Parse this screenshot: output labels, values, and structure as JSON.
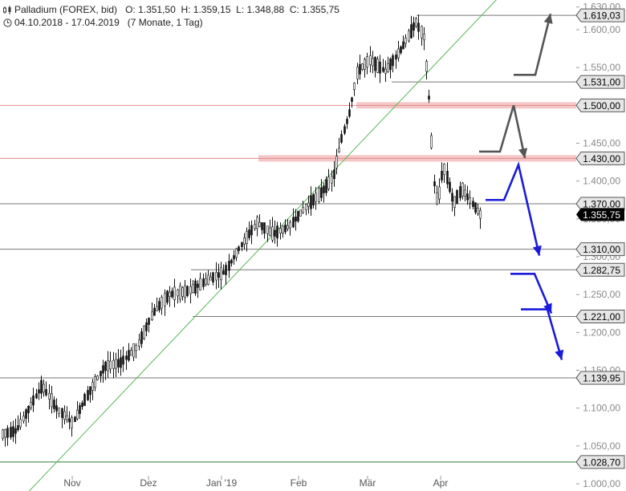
{
  "header": {
    "instrument": "Palladium (FOREX, bid)",
    "ohlc": "O: 1.351,50  H: 1.359,15  L: 1.348,88  C: 1.355,75",
    "range": "04.10.2018 - 17.04.2019",
    "period": "(7 Monate, 1 Tag)"
  },
  "chart_data": {
    "type": "candlestick",
    "ylim": [
      1000,
      1635
    ],
    "y_ticks": [
      "1.000,00",
      "1.050,00",
      "1.100,00",
      "1.150,00",
      "1.200,00",
      "1.250,00",
      "1.300,00",
      "1.350,00",
      "1.400,00",
      "1.450,00",
      "1.500,00",
      "1.550,00",
      "1.600,00",
      "1.630,00"
    ],
    "x_ticks": [
      "Nov",
      "Dez",
      "Jan '19",
      "Feb",
      "Mär",
      "Apr"
    ],
    "last_price": "1.355,75",
    "levels": [
      {
        "value": 1619.03,
        "label": "1.619,03",
        "zone": false
      },
      {
        "value": 1531.0,
        "label": "1.531,00",
        "zone": false
      },
      {
        "value": 1500.0,
        "label": "1.500,00",
        "zone": true
      },
      {
        "value": 1430.0,
        "label": "1.430,00",
        "zone": true
      },
      {
        "value": 1370.0,
        "label": "1.370,00",
        "zone": false
      },
      {
        "value": 1310.0,
        "label": "1.310,00",
        "zone": false
      },
      {
        "value": 1282.75,
        "label": "1.282,75",
        "zone": false
      },
      {
        "value": 1221.0,
        "label": "1.221,00",
        "zone": false
      },
      {
        "value": 1139.95,
        "label": "1.139,95",
        "zone": false
      },
      {
        "value": 1028.7,
        "label": "1.028,70",
        "zone": false
      }
    ],
    "trendline": [
      {
        "date": "2018-10-18",
        "value": 1000
      },
      {
        "date": "2019-04-17",
        "value": 1620
      }
    ],
    "scenario_arrows": [
      {
        "color": "gray",
        "direction": "up",
        "from": 1500,
        "to": 1620
      },
      {
        "color": "gray",
        "direction": "down",
        "from": 1500,
        "to": 1440
      },
      {
        "color": "blue",
        "direction": "down",
        "from": 1430,
        "to": 1310
      },
      {
        "color": "blue",
        "direction": "down",
        "from": 1282.75,
        "to": 1221
      },
      {
        "color": "blue",
        "direction": "down",
        "from": 1221,
        "to": 1150
      }
    ],
    "series": [
      {
        "months": [
          "Okt",
          "Nov",
          "Dez",
          "Jan",
          "Feb",
          "Mär",
          "Apr"
        ],
        "approx_close": [
          1075,
          1125,
          1250,
          1320,
          1380,
          1540,
          1355
        ]
      }
    ],
    "colors": {
      "zone": "#f4c7c7",
      "zone_line": "#e08a8a",
      "trend": "#58b758",
      "gray_arrow": "#555555",
      "blue_arrow": "#1a1adb"
    }
  }
}
